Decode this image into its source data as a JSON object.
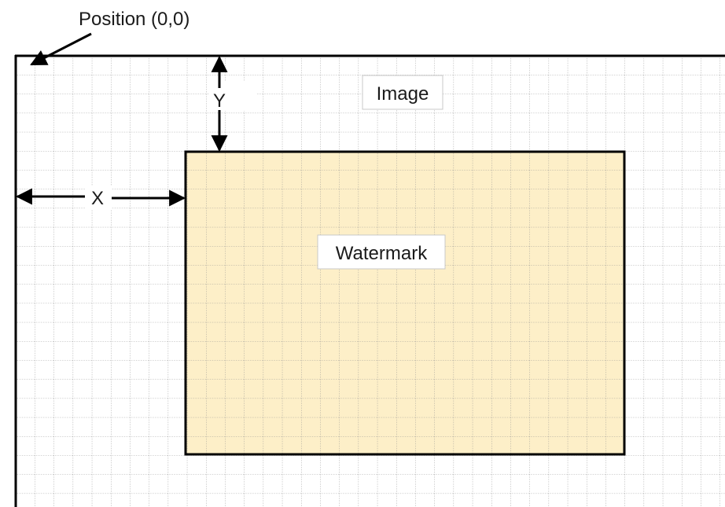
{
  "labels": {
    "origin": "Position (0,0)",
    "image": "Image",
    "watermark": "Watermark",
    "x_offset": "X",
    "y_offset": "Y"
  },
  "colors": {
    "watermark_fill": "#fdefc8",
    "outline": "#000000",
    "grid": "#8c8c8c",
    "label_box_border": "#c8c8c8"
  }
}
